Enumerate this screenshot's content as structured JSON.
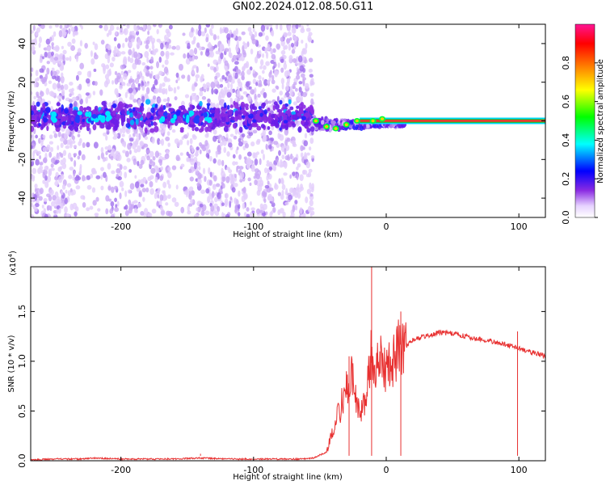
{
  "title": "GN02.2024.012.08.50.G11",
  "chart_data": [
    {
      "type": "heatmap",
      "xlabel": "Height of straight line (km)",
      "ylabel": "Frequency (Hz)",
      "xlim": [
        -268,
        120
      ],
      "ylim": [
        -50,
        50
      ],
      "x_ticks": [
        -200,
        -100,
        0,
        100
      ],
      "y_ticks": [
        -40,
        -20,
        0,
        20,
        40
      ],
      "colorbar": {
        "label": "Normalized spectral amplitude",
        "range": [
          0.0,
          1.0
        ],
        "ticks": [
          0.0,
          0.2,
          0.4,
          0.6,
          0.8
        ],
        "colors": [
          "#ffffff",
          "#e6d2ff",
          "#8a2be2",
          "#0000ff",
          "#00ffff",
          "#00ff00",
          "#ffff00",
          "#ff8000",
          "#ff0000",
          "#ff1493"
        ]
      },
      "features": {
        "noise_extent_x": [
          -268,
          -55
        ],
        "noisy_band_center_hz": 2,
        "carrier_line": {
          "x_start": -20,
          "x_end": 120,
          "freq_hz": 0,
          "amplitude": 0.85
        },
        "convergence_points": [
          {
            "x": -53,
            "y": 0
          },
          {
            "x": -45,
            "y": -3
          },
          {
            "x": -38,
            "y": -4
          },
          {
            "x": -30,
            "y": -2
          },
          {
            "x": -22,
            "y": 0
          },
          {
            "x": -10,
            "y": 0
          },
          {
            "x": -3,
            "y": 1
          }
        ]
      }
    },
    {
      "type": "line",
      "xlabel": "Height of straight line (km)",
      "ylabel": "SNR (10 * v/v)",
      "exponent_label": "(x10",
      "exponent_power": "4",
      "exponent_close": ")",
      "xlim": [
        -268,
        120
      ],
      "ylim": [
        0,
        1.95
      ],
      "x_ticks": [
        -200,
        -100,
        0,
        100
      ],
      "y_ticks": [
        0.0,
        0.5,
        1.0,
        1.5
      ],
      "y_tick_labels": [
        "0.0",
        "0.5",
        "1.0",
        "1.5"
      ],
      "series": [
        {
          "color": "#e83030",
          "x": [
            -268,
            -250,
            -230,
            -220,
            -200,
            -180,
            -160,
            -140,
            -120,
            -100,
            -80,
            -65,
            -55,
            -45,
            -40,
            -35,
            -30,
            -25,
            -20,
            -15,
            -12,
            -10,
            -8,
            -5,
            0,
            5,
            10,
            15,
            20,
            30,
            40,
            50,
            60,
            70,
            80,
            90,
            100,
            110,
            120
          ],
          "y": [
            0.0,
            0.01,
            0.01,
            0.02,
            0.01,
            0.01,
            0.01,
            0.02,
            0.01,
            0.01,
            0.01,
            0.01,
            0.02,
            0.08,
            0.35,
            0.55,
            0.75,
            0.9,
            0.45,
            0.7,
            1.1,
            1.2,
            0.95,
            1.05,
            0.95,
            1.1,
            1.2,
            1.15,
            1.22,
            1.25,
            1.29,
            1.28,
            1.25,
            1.22,
            1.2,
            1.17,
            1.13,
            1.09,
            1.05
          ]
        }
      ],
      "spikes": [
        {
          "x": -11,
          "y": 1.95
        },
        {
          "x": 11,
          "y": 1.5
        },
        {
          "x": 99,
          "y": 1.3
        },
        {
          "x": -28,
          "y": 1.05
        },
        {
          "x": -140,
          "y": 0.07
        },
        {
          "x": -225,
          "y": 0.05
        }
      ]
    }
  ]
}
